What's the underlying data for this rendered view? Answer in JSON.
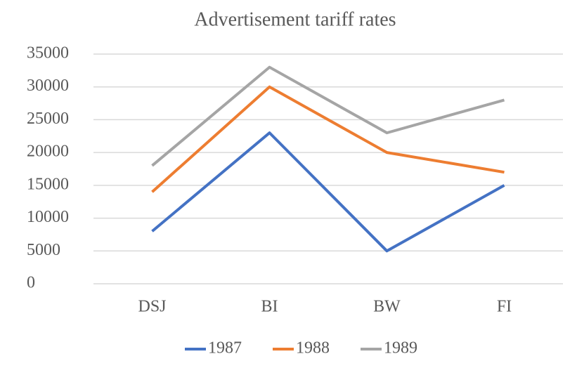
{
  "chart_data": {
    "type": "line",
    "title": "Advertisement tariff rates",
    "categories": [
      "DSJ",
      "BI",
      "BW",
      "FI"
    ],
    "series": [
      {
        "name": "1987",
        "color": "#4472c4",
        "values": [
          8000,
          23000,
          5000,
          15000
        ]
      },
      {
        "name": "1988",
        "color": "#ed7d31",
        "values": [
          14000,
          30000,
          20000,
          17000
        ]
      },
      {
        "name": "1989",
        "color": "#a5a5a5",
        "values": [
          18000,
          33000,
          23000,
          28000
        ]
      }
    ],
    "ylim": [
      0,
      35000
    ],
    "yticks": [
      0,
      5000,
      10000,
      15000,
      20000,
      25000,
      30000,
      35000
    ],
    "grid": true,
    "legend": "bottom"
  }
}
